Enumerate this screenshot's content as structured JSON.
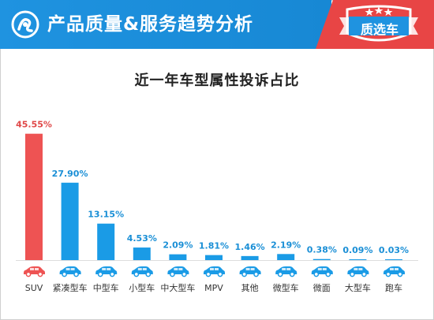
{
  "header": {
    "title": "产品质量&服务趋势分析",
    "badge_text": "质选车",
    "colors": {
      "blue": "#1f93e0",
      "red": "#e84545"
    }
  },
  "chart_data": {
    "type": "bar",
    "title": "近一年车型属性投诉占比",
    "xlabel": "",
    "ylabel": "",
    "ylim": [
      0,
      50
    ],
    "grid": false,
    "categories": [
      "SUV",
      "紧凑型车",
      "中型车",
      "小型车",
      "中大型车",
      "MPV",
      "其他",
      "微型车",
      "微面",
      "大型车",
      "跑车"
    ],
    "values": [
      45.55,
      27.9,
      13.15,
      4.53,
      2.09,
      1.81,
      1.46,
      2.19,
      0.38,
      0.09,
      0.03
    ],
    "value_labels": [
      "45.55%",
      "27.90%",
      "13.15%",
      "4.53%",
      "2.09%",
      "1.81%",
      "1.46%",
      "2.19%",
      "0.38%",
      "0.09%",
      "0.03%"
    ],
    "colors": {
      "highlight": "#ee5353",
      "bar": "#1a9be6",
      "highlight_label": "#e04848",
      "label": "#1a8fd6",
      "axis_text": "#333333"
    },
    "icons": [
      "suv-car-icon",
      "compact-car-icon",
      "midsize-car-icon",
      "small-car-icon",
      "large-midsize-car-icon",
      "mpv-icon",
      "other-car-icon",
      "mini-car-icon",
      "minivan-icon",
      "large-car-icon",
      "sports-car-icon"
    ]
  }
}
